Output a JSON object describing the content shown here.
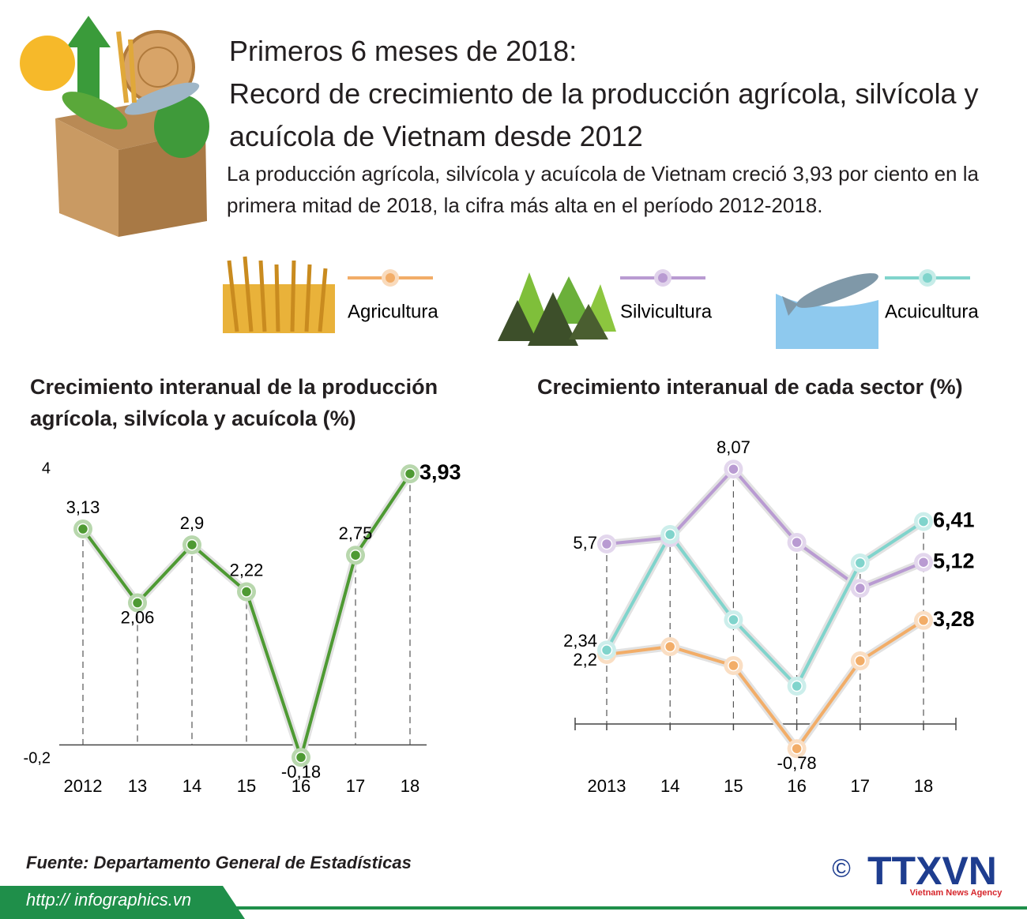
{
  "header": {
    "title": "Primeros 6 meses de 2018:",
    "headline": "Record de crecimiento de la producción agrícola, silvícola y acuícola de Vietnam desde 2012",
    "summary": "La producción agrícola, silvícola y acuícola de Vietnam creció 3,93 por ciento en la primera mitad de 2018, la cifra más alta en el período 2012-2018."
  },
  "chart_data": [
    {
      "type": "line",
      "title": "Crecimiento interanual de la producción agrícola, silvícola y acuícola  (%)",
      "categories": [
        "2012",
        "13",
        "14",
        "15",
        "16",
        "17",
        "18"
      ],
      "values": [
        3.13,
        2.06,
        2.9,
        2.22,
        -0.18,
        2.75,
        3.93
      ],
      "value_labels": [
        "3,13",
        "2,06",
        "2,9",
        "2,22",
        "-0,18",
        "2,75",
        "3,93"
      ],
      "color": "#4e9a33",
      "ylim": [
        -0.2,
        4
      ],
      "yticks": [
        {
          "value": -0.2,
          "label": "-0,2"
        },
        4
      ]
    },
    {
      "type": "line",
      "title": "Crecimiento interanual de cada sector (%)",
      "categories": [
        "2013",
        "14",
        "15",
        "16",
        "17",
        "18"
      ],
      "ylim": [
        -1,
        8.5
      ],
      "series": [
        {
          "name": "Agricultura",
          "color": "#f2ad68",
          "values": [
            2.2,
            2.45,
            1.85,
            -0.78,
            2.0,
            3.28
          ],
          "value_labels": [
            "2,2",
            null,
            null,
            "-0,78",
            null,
            "3,28"
          ]
        },
        {
          "name": "Silvicultura",
          "color": "#b99bd2",
          "values": [
            5.7,
            5.9,
            8.07,
            5.75,
            4.3,
            5.12
          ],
          "value_labels": [
            "5,7",
            null,
            "8,07",
            null,
            null,
            "5,12"
          ]
        },
        {
          "name": "Acuicultura",
          "color": "#80d4cc",
          "values": [
            2.34,
            6.0,
            3.3,
            1.2,
            5.1,
            6.41
          ],
          "value_labels": [
            "2,34",
            null,
            null,
            null,
            null,
            "6,41"
          ]
        }
      ]
    }
  ],
  "footer": {
    "source": "Fuente: Departamento General de Estadísticas",
    "url": "http:// infographics.vn",
    "copyright": "©",
    "logo": "TTXVN",
    "agency": "Vietnam News Agency"
  }
}
